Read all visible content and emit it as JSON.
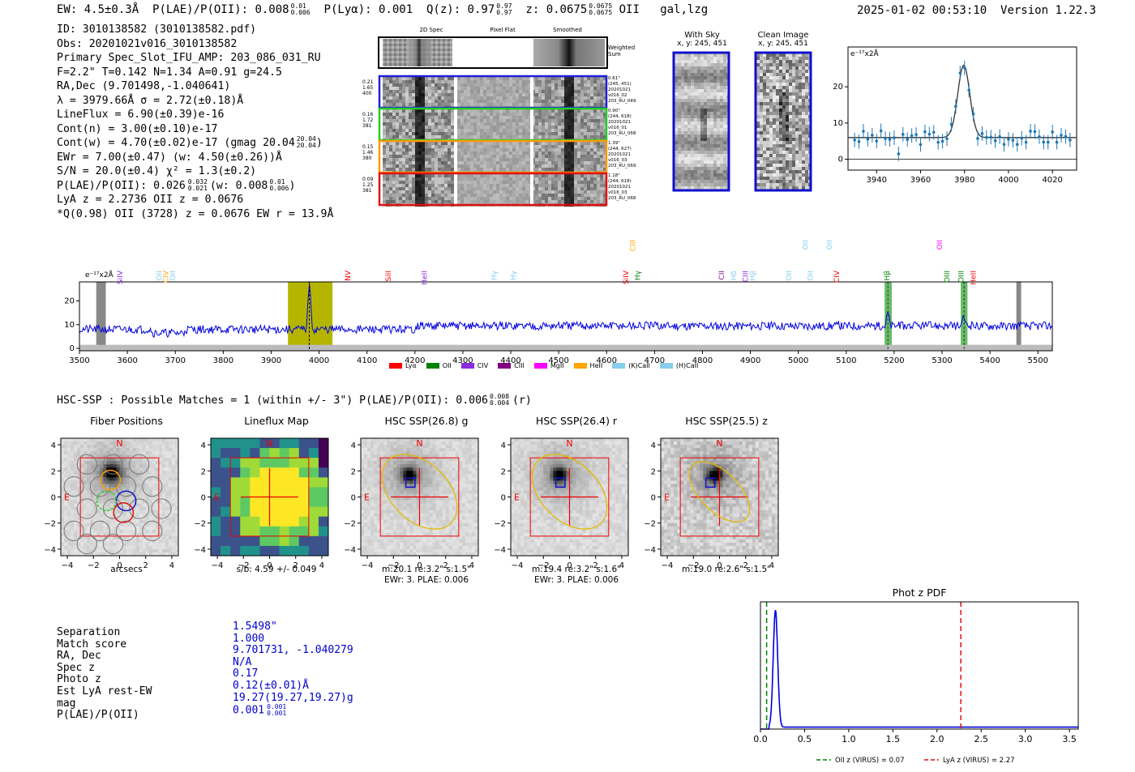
{
  "header": {
    "ew": "EW: 4.5±0.3Å",
    "plae_label": "P(LAE)/P(OII): 0.008",
    "plae_sup": "0.01",
    "plae_sub": "0.006",
    "plya": "P(Lyα): 0.001",
    "qz_label": "Q(z): 0.97",
    "qz_sup": "0.97",
    "qz_sub": "0.97",
    "z_label": "z: 0.0675",
    "z_sup": "0.0675",
    "z_sub": "0.0675",
    "z_line": "OII",
    "flags": "gal,lzg",
    "timestamp": "2025-01-02 00:53:10",
    "version": "Version 1.22.3"
  },
  "info": {
    "lines": [
      "ID: 3010138582 (3010138582.pdf)",
      "Obs: 20201021v016_3010138582",
      "Primary Spec_Slot_IFU_AMP: 203_086_031_RU",
      "F=2.2\"  T=0.142  N=1.34  A=0.91  g=24.5",
      "RA,Dec (9.701498,-1.040641)",
      "λ = 3979.66Å  σ = 2.72(±0.18)Å",
      "LineFlux = 6.90(±0.39)e-16",
      "Cont(n) = 3.00(±0.10)e-17",
      "Cont(w) = 4.70(±0.02)e-17 (gmag 20.04",
      "EWr = 7.00(±0.47) (w: 4.50(±0.26))Å",
      "S/N = 20.0(±0.4)  χ² = 1.3(±0.2)",
      "P(LAE)/P(OII): 0.026",
      "LyA z = 2.2736  OII z = 0.0676",
      "*Q(0.98) OII (3728) z = 0.0676  EW r = 13.9Å"
    ],
    "gmag_sup": "20.04",
    "gmag_sub": "20.04",
    "plae_sup": "0.032",
    "plae_sub": "0.021",
    "plae_w": "(w: 0.008",
    "plae_w_sup": "0.01",
    "plae_w_sub": "0.006"
  },
  "cutouts": {
    "col_titles": [
      "2D Spec",
      "Pixel Flat",
      "Smoothed"
    ],
    "weighted_sum": "Weighted Sum",
    "rows": [
      {
        "left": [
          "0.21",
          "1.65",
          "400"
        ],
        "right": [
          "0.61\"",
          "(245, 451)",
          "20201021",
          "v016_02",
          "203_RU_049"
        ],
        "color": "#1f1fd8"
      },
      {
        "left": [
          "0.16",
          "1.72",
          "381"
        ],
        "right": [
          "0.90\"",
          "(244, 618)",
          "20201021",
          "v016_01",
          "203_RU_068"
        ],
        "color": "#22cc22"
      },
      {
        "left": [
          "0.15",
          "1.46",
          "380"
        ],
        "right": [
          "1.39\"",
          "(244, 627)",
          "20201021",
          "v016_03",
          "203_RU_069"
        ],
        "color": "#ff9900"
      },
      {
        "left": [
          "0.09",
          "1.25",
          "381"
        ],
        "right": [
          "1.18\"",
          "(244, 618)",
          "20201021",
          "v016_03",
          "203_RU_068"
        ],
        "color": "#e01010"
      }
    ]
  },
  "with_sky": {
    "title": "With Sky",
    "coords": "x, y: 245, 451"
  },
  "clean_image": {
    "title": "Clean Image",
    "coords": "x, y: 245, 451"
  },
  "zoom_spec": {
    "unit": "e⁻¹⁷x2Å",
    "x_ticks": [
      "3940",
      "3960",
      "3980",
      "4000",
      "4020"
    ],
    "y_ticks": [
      "0",
      "10",
      "20"
    ]
  },
  "full_spec": {
    "unit": "e⁻¹⁷x2Å",
    "x_ticks": [
      "3500",
      "3600",
      "3700",
      "3800",
      "3900",
      "4000",
      "4100",
      "4200",
      "4300",
      "4400",
      "4500",
      "4600",
      "4700",
      "4800",
      "4900",
      "5000",
      "5100",
      "5200",
      "5300",
      "5400",
      "5500"
    ],
    "y_ticks": [
      "0",
      "10",
      "20"
    ],
    "line_labels": [
      "SiIV",
      "OII",
      "CIV",
      "OII",
      "NV",
      "SiII",
      "HeII",
      "Hγ",
      "Hγ",
      "SiIV",
      "CIII",
      "Hγ",
      "CII",
      "Hδ",
      "CIII",
      "Hβ",
      "OII",
      "OII",
      "OII",
      "OII",
      "CIV",
      "Hβ",
      "OIII",
      "OIII",
      "OII",
      "HeII"
    ],
    "legend": [
      {
        "label": "Lyα",
        "color": "#ff0000"
      },
      {
        "label": "OII",
        "color": "#008000"
      },
      {
        "label": "CIV",
        "color": "#8a2be2"
      },
      {
        "label": "CIII",
        "color": "#800080"
      },
      {
        "label": "MgII",
        "color": "#ff00ff"
      },
      {
        "label": "HeII",
        "color": "#ffa500"
      },
      {
        "label": "(K)CaII",
        "color": "#87ceeb"
      },
      {
        "label": "(H)CaII",
        "color": "#87ceeb"
      }
    ]
  },
  "hsc": {
    "header": "HSC-SSP : Possible Matches = 1 (within +/- 3\")  P(LAE)/P(OII): 0.006",
    "header_sup": "0.008",
    "header_sub": "0.004",
    "header_band": "(r)",
    "panels": [
      {
        "title": "Fiber Positions",
        "caption1": "arcsecs",
        "caption2": ""
      },
      {
        "title": "Lineflux Map",
        "caption1": "s/b: 4.59 +/- 0.049",
        "caption2": ""
      },
      {
        "title": "HSC SSP(26.8) g",
        "caption1": "m:20.1  re:3.2\"  s:1.5\"",
        "caption2": "EWr: 3. PLAE: 0.006"
      },
      {
        "title": "HSC SSP(26.4) r",
        "caption1": "m:19.4  re:3.2\"  s:1.6\"",
        "caption2": "EWr: 3. PLAE: 0.006"
      },
      {
        "title": "HSC SSP(25.5) z",
        "caption1": "m:19.0  re:2.6\"  s:1.5\"",
        "caption2": ""
      }
    ],
    "ticks": [
      "4",
      "2",
      "0",
      "−2",
      "−4"
    ],
    "xticks": [
      "−4",
      "−2",
      "0",
      "2",
      "4"
    ],
    "compass_n": "N",
    "compass_e": "E"
  },
  "match": {
    "labels": [
      "Separation",
      "Match score",
      "RA, Dec",
      "Spec z",
      "Photo z",
      "Est LyA rest-EW",
      "mag",
      "P(LAE)/P(OII)"
    ],
    "values": [
      "1.5498\"",
      "1.000",
      "9.701731, -1.040279",
      "N/A",
      "0.17",
      "0.12(±0.01)Å",
      "19.27(19.27,19.27)g",
      "0.001"
    ],
    "plae_sup": "0.001",
    "plae_sub": "0.001"
  },
  "photz": {
    "title": "Phot z PDF",
    "x_ticks": [
      "0.0",
      "0.5",
      "1.0",
      "1.5",
      "2.0",
      "2.5",
      "3.0",
      "3.5"
    ],
    "legend_oii": "OII z (VIRUS) = 0.07",
    "legend_lya": "LyA z (VIRUS) = 2.27",
    "oii_z": 0.07,
    "lya_z": 2.27,
    "peak_z": 0.17
  }
}
